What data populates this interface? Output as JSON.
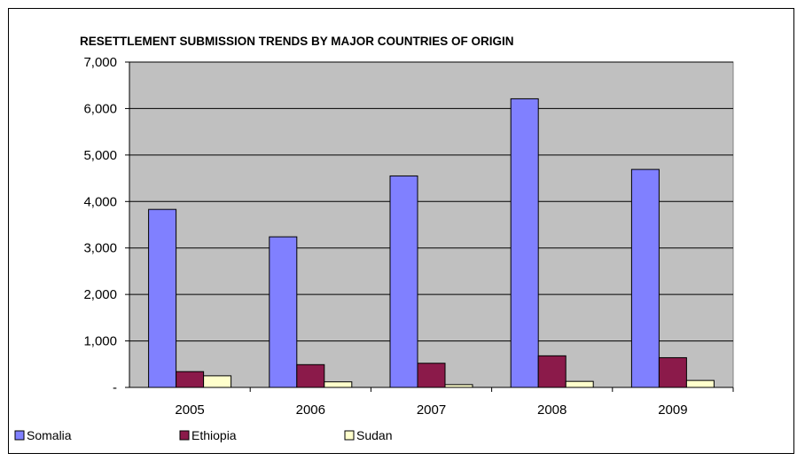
{
  "chart_data": {
    "type": "bar",
    "title": "RESETTLEMENT SUBMISSION TRENDS BY MAJOR COUNTRIES OF ORIGIN",
    "xlabel": "",
    "ylabel": "",
    "categories": [
      "2005",
      "2006",
      "2007",
      "2008",
      "2009"
    ],
    "series": [
      {
        "name": "Somalia",
        "color": "#8080ff",
        "values": [
          3830,
          3240,
          4550,
          6210,
          4690
        ]
      },
      {
        "name": "Ethiopia",
        "color": "#8b1a4a",
        "values": [
          340,
          490,
          520,
          680,
          640
        ]
      },
      {
        "name": "Sudan",
        "color": "#ffffcc",
        "values": [
          250,
          120,
          60,
          130,
          150
        ]
      }
    ],
    "ylim": [
      0,
      7000
    ],
    "yticks": [
      {
        "value": 0,
        "label": "-"
      },
      {
        "value": 1000,
        "label": "1,000"
      },
      {
        "value": 2000,
        "label": "2,000"
      },
      {
        "value": 3000,
        "label": "3,000"
      },
      {
        "value": 4000,
        "label": "4,000"
      },
      {
        "value": 5000,
        "label": "5,000"
      },
      {
        "value": 6000,
        "label": "6,000"
      },
      {
        "value": 7000,
        "label": "7,000"
      }
    ],
    "grid": true,
    "plot_background": "#c0c0c0",
    "legend_position": "bottom-left"
  }
}
